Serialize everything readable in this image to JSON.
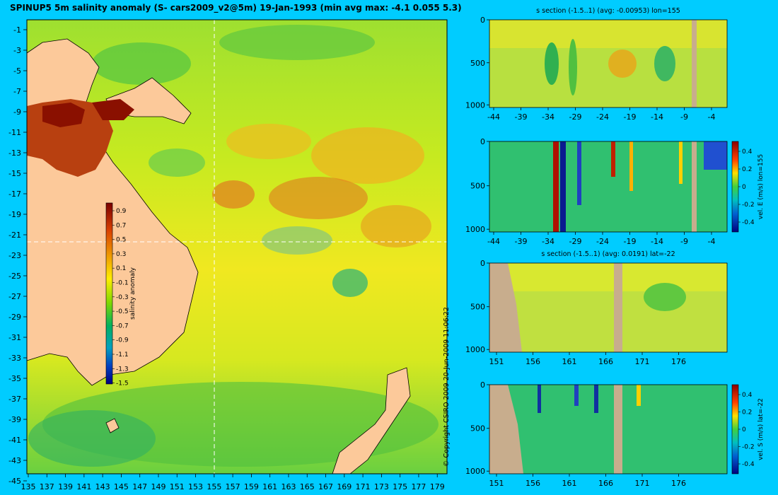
{
  "main_title": "SPINUP5 5m salinity anomaly (S- cars2009_v2@5m) 19-Jan-1993 (min avg max: -4.1 0.055 5.3)",
  "copyright": "© Copyright CSIRO 2009   20-Jun-2009 11:06:22",
  "colors": {
    "background": "#00ccff",
    "land": "#fcc99a",
    "section_land": "#c8ad8d"
  },
  "map": {
    "x_ticks": [
      "135",
      "137",
      "139",
      "141",
      "143",
      "145",
      "147",
      "149",
      "151",
      "153",
      "155",
      "157",
      "159",
      "161",
      "163",
      "165",
      "167",
      "169",
      "171",
      "173",
      "175",
      "177",
      "179"
    ],
    "y_ticks": [
      "-1",
      "-3",
      "-5",
      "-7",
      "-9",
      "-11",
      "-13",
      "-15",
      "-17",
      "-19",
      "-21",
      "-23",
      "-25",
      "-27",
      "-29",
      "-31",
      "-33",
      "-35",
      "-37",
      "-39",
      "-41",
      "-43",
      "-45"
    ],
    "colorbar_label": "salinity anomaly",
    "colorbar_ticks": [
      "0.9",
      "0.7",
      "0.5",
      "0.3",
      "0.1",
      "-0.1",
      "-0.3",
      "-0.5",
      "-0.7",
      "-0.9",
      "-1.1",
      "-1.3",
      "-1.5"
    ],
    "crosshair": {
      "lon": 155,
      "lat": -22
    }
  },
  "panels": [
    {
      "title": "s section (-1.5..1) (avg: -0.00953) lon=155",
      "x_ticks": [
        "-44",
        "-39",
        "-34",
        "-29",
        "-24",
        "-19",
        "-14",
        "-9",
        "-4"
      ],
      "y_ticks": [
        "0",
        "500",
        "1000"
      ],
      "colorbar": null
    },
    {
      "title": "",
      "x_ticks": [
        "-44",
        "-39",
        "-34",
        "-29",
        "-24",
        "-19",
        "-14",
        "-9",
        "-4"
      ],
      "y_ticks": [
        "0",
        "500",
        "1000"
      ],
      "colorbar": {
        "label": "vel. E (m/s) lon=155",
        "ticks": [
          "0.4",
          "0.2",
          "0",
          "-0.2",
          "-0.4"
        ]
      }
    },
    {
      "title": "s section (-1.5..1) (avg: 0.0191) lat=-22",
      "x_ticks": [
        "151",
        "156",
        "161",
        "166",
        "171",
        "176"
      ],
      "y_ticks": [
        "0",
        "500",
        "1000"
      ],
      "colorbar": null
    },
    {
      "title": "",
      "x_ticks": [
        "151",
        "156",
        "161",
        "166",
        "171",
        "176"
      ],
      "y_ticks": [
        "0",
        "500",
        "1000"
      ],
      "colorbar": {
        "label": "vel. S (m/s) lat=-22",
        "ticks": [
          "0.4",
          "0.2",
          "0",
          "-0.2",
          "-0.4"
        ]
      }
    }
  ]
}
